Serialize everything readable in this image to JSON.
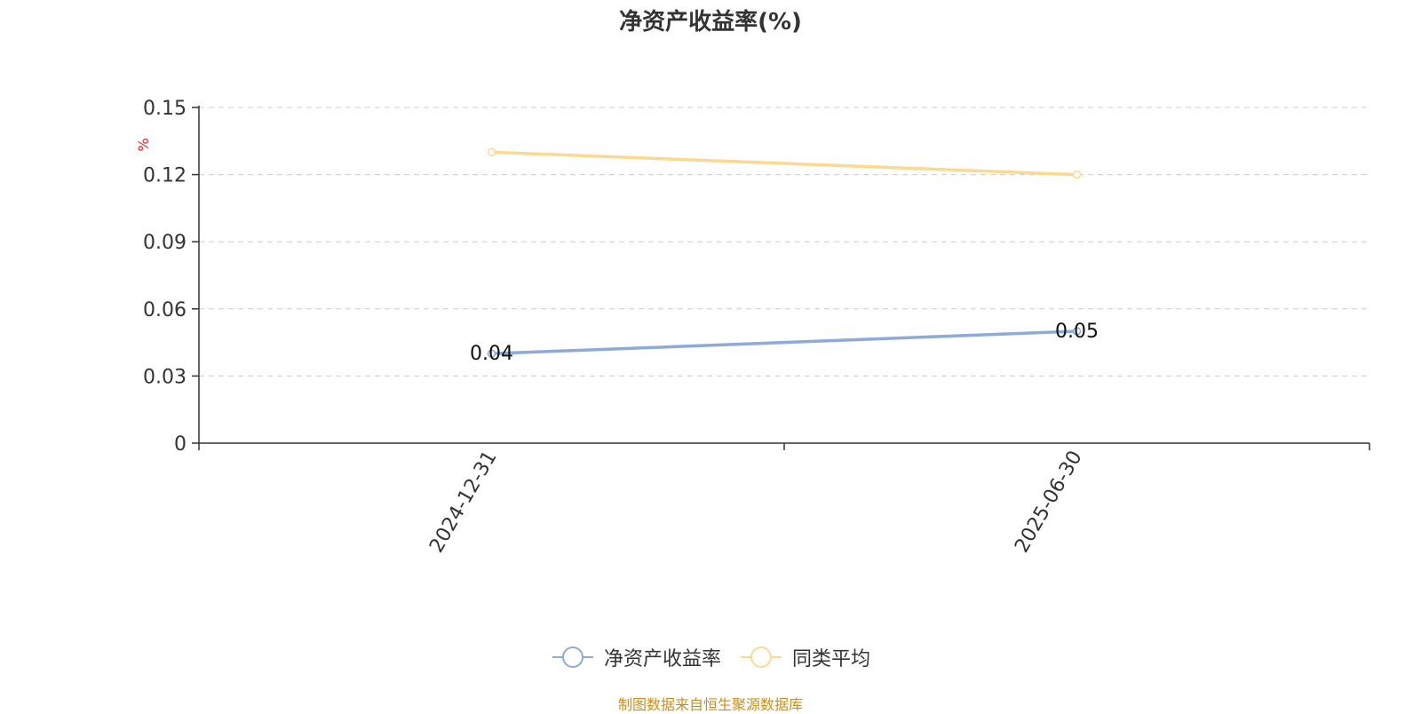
{
  "title": "净资产收益率(%)",
  "source": "制图数据来自恒生聚源数据库",
  "colors": {
    "series_primary": "#8eaad8",
    "series_secondary": "#fcd993",
    "unit_label": "#e02020",
    "source_text": "#c8901a",
    "grid": "#cccccc",
    "axis": "#333333"
  },
  "chart_data": {
    "type": "line",
    "x": [
      "2024-12-31",
      "2025-06-30"
    ],
    "ylabel": "%",
    "ylim": [
      0,
      0.15
    ],
    "yticks": [
      "0",
      "0.03",
      "0.06",
      "0.09",
      "0.12",
      "0.15"
    ],
    "grid": true,
    "legend_position": "bottom-center",
    "series": [
      {
        "name": "净资产收益率",
        "values": [
          0.04,
          0.05
        ],
        "data_labels": [
          "0.04",
          "0.05"
        ]
      },
      {
        "name": "同类平均",
        "values": [
          0.13,
          0.12
        ]
      }
    ]
  }
}
